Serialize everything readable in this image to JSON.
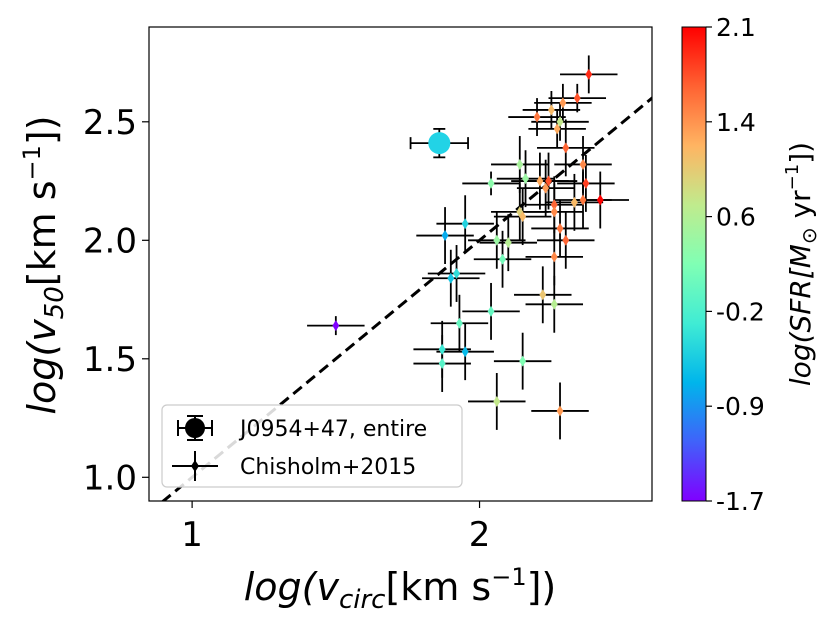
{
  "chart_data": {
    "type": "scatter",
    "xlabel": {
      "main": "log(v",
      "sub": "circ",
      "unit": "[km s",
      "sup": "−1",
      "close": "])"
    },
    "ylabel": {
      "main": "log(v",
      "sub": "50",
      "unit": "[km s",
      "sup": "−1",
      "close": "])"
    },
    "xlim": [
      0.85,
      2.6
    ],
    "ylim": [
      0.9,
      2.9
    ],
    "x_ticks": [
      {
        "value": 1,
        "label": "1"
      },
      {
        "value": 2,
        "label": "2"
      }
    ],
    "y_ticks": [
      {
        "value": 1.0,
        "label": "1.0"
      },
      {
        "value": 1.5,
        "label": "1.5"
      },
      {
        "value": 2.0,
        "label": "2.0"
      },
      {
        "value": 2.5,
        "label": "2.5"
      }
    ],
    "one_to_one_line": {
      "style": "dashed",
      "color": "#000000"
    },
    "colorbar": {
      "min": -1.7,
      "max": 2.1,
      "ticks": [
        "2.1",
        "1.4",
        "0.6",
        "-0.2",
        "-0.9",
        "-1.7"
      ],
      "label": {
        "main": "log(SFR[M",
        "sun": "⊙",
        "unit": " yr",
        "sup": "−1",
        "close": "])"
      }
    },
    "legend": {
      "position": "lower-left",
      "entries": [
        "J0954+47, entire",
        "Chisholm+2015"
      ]
    },
    "series": [
      {
        "name": "J0954+47, entire",
        "marker": "circle",
        "points": [
          {
            "x": 1.86,
            "y": 2.41,
            "xerr": 0.1,
            "yerr": 0.06,
            "c": -0.45
          }
        ]
      },
      {
        "name": "Chisholm+2015",
        "marker": "diamond",
        "points": [
          {
            "x": 2.38,
            "y": 2.7,
            "xerr": 0.1,
            "yerr": 0.08,
            "c": 1.9
          },
          {
            "x": 2.34,
            "y": 2.6,
            "xerr": 0.1,
            "yerr": 0.06,
            "c": 1.7
          },
          {
            "x": 2.29,
            "y": 2.58,
            "xerr": 0.1,
            "yerr": 0.08,
            "c": 1.3
          },
          {
            "x": 2.25,
            "y": 2.55,
            "xerr": 0.1,
            "yerr": 0.08,
            "c": 1.1
          },
          {
            "x": 2.2,
            "y": 2.52,
            "xerr": 0.1,
            "yerr": 0.08,
            "c": 1.5
          },
          {
            "x": 2.28,
            "y": 2.5,
            "xerr": 0.1,
            "yerr": 0.08,
            "c": 0.7
          },
          {
            "x": 2.27,
            "y": 2.47,
            "xerr": 0.1,
            "yerr": 0.08,
            "c": 1.2
          },
          {
            "x": 2.3,
            "y": 2.39,
            "xerr": 0.1,
            "yerr": 0.12,
            "c": 1.6
          },
          {
            "x": 2.36,
            "y": 2.32,
            "xerr": 0.1,
            "yerr": 0.12,
            "c": 1.4
          },
          {
            "x": 2.14,
            "y": 2.32,
            "xerr": 0.1,
            "yerr": 0.12,
            "c": 0.5
          },
          {
            "x": 2.04,
            "y": 2.24,
            "xerr": 0.1,
            "yerr": 0.05,
            "c": 0.3
          },
          {
            "x": 2.16,
            "y": 2.26,
            "xerr": 0.1,
            "yerr": 0.12,
            "c": 0.4
          },
          {
            "x": 2.21,
            "y": 2.25,
            "xerr": 0.1,
            "yerr": 0.12,
            "c": 1.2
          },
          {
            "x": 2.24,
            "y": 2.25,
            "xerr": 0.1,
            "yerr": 0.12,
            "c": 1.7
          },
          {
            "x": 2.37,
            "y": 2.24,
            "xerr": 0.1,
            "yerr": 0.12,
            "c": 1.8
          },
          {
            "x": 2.23,
            "y": 2.22,
            "xerr": 0.1,
            "yerr": 0.12,
            "c": 1.3
          },
          {
            "x": 2.42,
            "y": 2.17,
            "xerr": 0.1,
            "yerr": 0.12,
            "c": 2.1
          },
          {
            "x": 2.36,
            "y": 2.17,
            "xerr": 0.1,
            "yerr": 0.12,
            "c": 1.5
          },
          {
            "x": 2.33,
            "y": 2.16,
            "xerr": 0.1,
            "yerr": 0.12,
            "c": 1.1
          },
          {
            "x": 2.26,
            "y": 2.15,
            "xerr": 0.1,
            "yerr": 0.12,
            "c": 1.6
          },
          {
            "x": 2.26,
            "y": 2.12,
            "xerr": 0.1,
            "yerr": 0.12,
            "c": 1.4
          },
          {
            "x": 2.14,
            "y": 2.12,
            "xerr": 0.1,
            "yerr": 0.12,
            "c": 0.9
          },
          {
            "x": 2.15,
            "y": 2.1,
            "xerr": 0.1,
            "yerr": 0.12,
            "c": 1.1
          },
          {
            "x": 2.28,
            "y": 2.05,
            "xerr": 0.1,
            "yerr": 0.12,
            "c": 1.5
          },
          {
            "x": 1.95,
            "y": 2.07,
            "xerr": 0.1,
            "yerr": 0.12,
            "c": -0.5
          },
          {
            "x": 1.88,
            "y": 2.02,
            "xerr": 0.1,
            "yerr": 0.12,
            "c": -0.8
          },
          {
            "x": 2.3,
            "y": 2.0,
            "xerr": 0.1,
            "yerr": 0.12,
            "c": 1.6
          },
          {
            "x": 2.06,
            "y": 2.0,
            "xerr": 0.1,
            "yerr": 0.12,
            "c": 0.4
          },
          {
            "x": 2.1,
            "y": 1.99,
            "xerr": 0.1,
            "yerr": 0.12,
            "c": 0.6
          },
          {
            "x": 2.26,
            "y": 1.93,
            "xerr": 0.1,
            "yerr": 0.12,
            "c": 1.4
          },
          {
            "x": 2.08,
            "y": 1.92,
            "xerr": 0.1,
            "yerr": 0.12,
            "c": 0.1
          },
          {
            "x": 1.92,
            "y": 1.86,
            "xerr": 0.1,
            "yerr": 0.12,
            "c": -0.4
          },
          {
            "x": 1.9,
            "y": 1.84,
            "xerr": 0.1,
            "yerr": 0.12,
            "c": -0.6
          },
          {
            "x": 2.22,
            "y": 1.77,
            "xerr": 0.1,
            "yerr": 0.12,
            "c": 1.0
          },
          {
            "x": 2.26,
            "y": 1.73,
            "xerr": 0.1,
            "yerr": 0.12,
            "c": 0.6
          },
          {
            "x": 2.04,
            "y": 1.7,
            "xerr": 0.1,
            "yerr": 0.12,
            "c": 0.0
          },
          {
            "x": 1.93,
            "y": 1.65,
            "xerr": 0.1,
            "yerr": 0.12,
            "c": 0.0
          },
          {
            "x": 1.5,
            "y": 1.64,
            "xerr": 0.1,
            "yerr": 0.04,
            "c": -1.7
          },
          {
            "x": 1.87,
            "y": 1.54,
            "xerr": 0.1,
            "yerr": 0.12,
            "c": -0.3
          },
          {
            "x": 1.95,
            "y": 1.53,
            "xerr": 0.1,
            "yerr": 0.12,
            "c": -0.7
          },
          {
            "x": 2.15,
            "y": 1.49,
            "xerr": 0.1,
            "yerr": 0.12,
            "c": 0.2
          },
          {
            "x": 1.87,
            "y": 1.48,
            "xerr": 0.1,
            "yerr": 0.12,
            "c": -0.1
          },
          {
            "x": 2.06,
            "y": 1.32,
            "xerr": 0.1,
            "yerr": 0.12,
            "c": 0.7
          },
          {
            "x": 2.28,
            "y": 1.28,
            "xerr": 0.1,
            "yerr": 0.12,
            "c": 1.3
          }
        ]
      }
    ]
  }
}
